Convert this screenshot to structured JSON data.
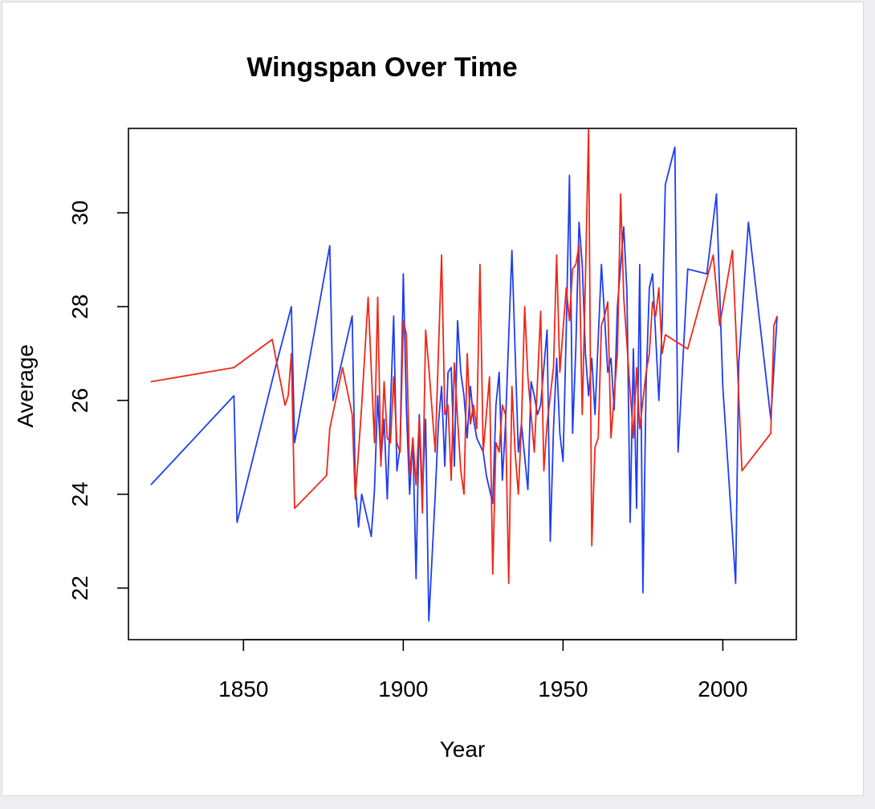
{
  "chart_data": {
    "type": "line",
    "title": "Wingspan Over Time",
    "xlabel": "Year",
    "ylabel": "Average",
    "xlim": [
      1814,
      2023
    ],
    "ylim": [
      20.9,
      31.8
    ],
    "xticks": [
      1850,
      1900,
      1950,
      2000
    ],
    "yticks": [
      22,
      24,
      26,
      28,
      30
    ],
    "grid": false,
    "series": [
      {
        "color": "#1f3df2",
        "points": [
          [
            1821,
            24.2
          ],
          [
            1847,
            26.1
          ],
          [
            1848,
            23.4
          ],
          [
            1860,
            26.7
          ],
          [
            1865,
            28.0
          ],
          [
            1866,
            25.1
          ],
          [
            1877,
            29.3
          ],
          [
            1878,
            26.0
          ],
          [
            1884,
            27.8
          ],
          [
            1885,
            24.2
          ],
          [
            1886,
            23.3
          ],
          [
            1887,
            24.0
          ],
          [
            1890,
            23.1
          ],
          [
            1891,
            24.1
          ],
          [
            1892,
            26.1
          ],
          [
            1893,
            24.7
          ],
          [
            1894,
            25.6
          ],
          [
            1895,
            23.9
          ],
          [
            1897,
            27.8
          ],
          [
            1898,
            24.5
          ],
          [
            1899,
            25.0
          ],
          [
            1900,
            28.7
          ],
          [
            1901,
            25.8
          ],
          [
            1902,
            24.0
          ],
          [
            1903,
            25.2
          ],
          [
            1904,
            22.2
          ],
          [
            1905,
            25.7
          ],
          [
            1906,
            24.0
          ],
          [
            1907,
            25.6
          ],
          [
            1908,
            21.3
          ],
          [
            1910,
            24.0
          ],
          [
            1911,
            25.5
          ],
          [
            1912,
            26.3
          ],
          [
            1913,
            24.6
          ],
          [
            1914,
            26.6
          ],
          [
            1915,
            26.7
          ],
          [
            1916,
            24.6
          ],
          [
            1917,
            27.7
          ],
          [
            1918,
            26.6
          ],
          [
            1919,
            26.1
          ],
          [
            1920,
            25.2
          ],
          [
            1921,
            26.3
          ],
          [
            1922,
            25.6
          ],
          [
            1923,
            25.2
          ],
          [
            1925,
            24.9
          ],
          [
            1926,
            24.4
          ],
          [
            1928,
            23.8
          ],
          [
            1929,
            25.9
          ],
          [
            1930,
            26.6
          ],
          [
            1931,
            24.3
          ],
          [
            1932,
            25.5
          ],
          [
            1934,
            29.2
          ],
          [
            1936,
            24.9
          ],
          [
            1937,
            25.5
          ],
          [
            1939,
            24.1
          ],
          [
            1940,
            26.4
          ],
          [
            1941,
            26.1
          ],
          [
            1942,
            25.7
          ],
          [
            1943,
            25.9
          ],
          [
            1945,
            27.5
          ],
          [
            1946,
            23.0
          ],
          [
            1947,
            25.4
          ],
          [
            1948,
            26.9
          ],
          [
            1949,
            25.3
          ],
          [
            1950,
            24.7
          ],
          [
            1951,
            27.5
          ],
          [
            1952,
            30.8
          ],
          [
            1953,
            25.3
          ],
          [
            1954,
            27.1
          ],
          [
            1955,
            29.8
          ],
          [
            1956,
            28.9
          ],
          [
            1957,
            27.0
          ],
          [
            1958,
            26.1
          ],
          [
            1959,
            26.9
          ],
          [
            1960,
            25.7
          ],
          [
            1962,
            28.9
          ],
          [
            1963,
            27.8
          ],
          [
            1964,
            26.6
          ],
          [
            1965,
            26.9
          ],
          [
            1966,
            25.8
          ],
          [
            1967,
            28.0
          ],
          [
            1969,
            29.7
          ],
          [
            1970,
            28.3
          ],
          [
            1971,
            23.4
          ],
          [
            1972,
            27.1
          ],
          [
            1973,
            23.7
          ],
          [
            1974,
            28.9
          ],
          [
            1975,
            21.9
          ],
          [
            1976,
            26.4
          ],
          [
            1977,
            28.4
          ],
          [
            1978,
            28.7
          ],
          [
            1980,
            26.0
          ],
          [
            1981,
            27.6
          ],
          [
            1982,
            30.6
          ],
          [
            1985,
            31.4
          ],
          [
            1986,
            24.9
          ],
          [
            1989,
            28.8
          ],
          [
            1995,
            28.7
          ],
          [
            1998,
            30.4
          ],
          [
            2000,
            26.3
          ],
          [
            2004,
            22.1
          ],
          [
            2005,
            26.8
          ],
          [
            2008,
            29.8
          ],
          [
            2015,
            25.6
          ],
          [
            2017,
            27.8
          ]
        ]
      },
      {
        "color": "#f02716",
        "points": [
          [
            1821,
            26.4
          ],
          [
            1847,
            26.7
          ],
          [
            1859,
            27.3
          ],
          [
            1863,
            25.9
          ],
          [
            1864,
            26.1
          ],
          [
            1865,
            27.0
          ],
          [
            1866,
            23.7
          ],
          [
            1876,
            24.4
          ],
          [
            1877,
            25.4
          ],
          [
            1881,
            26.7
          ],
          [
            1884,
            25.7
          ],
          [
            1885,
            23.9
          ],
          [
            1887,
            25.9
          ],
          [
            1889,
            28.2
          ],
          [
            1891,
            25.1
          ],
          [
            1892,
            28.2
          ],
          [
            1893,
            24.6
          ],
          [
            1894,
            26.4
          ],
          [
            1895,
            25.2
          ],
          [
            1896,
            25.1
          ],
          [
            1897,
            26.5
          ],
          [
            1898,
            25.1
          ],
          [
            1899,
            24.9
          ],
          [
            1900,
            27.7
          ],
          [
            1901,
            27.4
          ],
          [
            1902,
            24.4
          ],
          [
            1903,
            25.2
          ],
          [
            1904,
            24.2
          ],
          [
            1905,
            25.6
          ],
          [
            1906,
            23.6
          ],
          [
            1907,
            27.5
          ],
          [
            1908,
            26.7
          ],
          [
            1910,
            24.9
          ],
          [
            1911,
            27.0
          ],
          [
            1912,
            29.1
          ],
          [
            1913,
            25.7
          ],
          [
            1914,
            25.9
          ],
          [
            1915,
            24.3
          ],
          [
            1916,
            26.8
          ],
          [
            1917,
            25.6
          ],
          [
            1918,
            24.5
          ],
          [
            1919,
            24.0
          ],
          [
            1920,
            27.0
          ],
          [
            1921,
            25.5
          ],
          [
            1922,
            25.9
          ],
          [
            1923,
            25.4
          ],
          [
            1924,
            28.9
          ],
          [
            1925,
            24.9
          ],
          [
            1927,
            26.5
          ],
          [
            1928,
            22.3
          ],
          [
            1929,
            25.1
          ],
          [
            1930,
            24.9
          ],
          [
            1931,
            25.9
          ],
          [
            1932,
            25.7
          ],
          [
            1933,
            22.1
          ],
          [
            1934,
            26.3
          ],
          [
            1935,
            24.9
          ],
          [
            1936,
            24.0
          ],
          [
            1937,
            25.5
          ],
          [
            1938,
            28.0
          ],
          [
            1939,
            26.5
          ],
          [
            1940,
            25.7
          ],
          [
            1941,
            24.9
          ],
          [
            1943,
            27.9
          ],
          [
            1944,
            24.5
          ],
          [
            1945,
            25.5
          ],
          [
            1947,
            26.7
          ],
          [
            1948,
            29.1
          ],
          [
            1949,
            26.6
          ],
          [
            1951,
            28.4
          ],
          [
            1952,
            27.7
          ],
          [
            1953,
            28.8
          ],
          [
            1954,
            28.9
          ],
          [
            1955,
            29.3
          ],
          [
            1956,
            25.7
          ],
          [
            1957,
            28.6
          ],
          [
            1958,
            31.8
          ],
          [
            1959,
            22.9
          ],
          [
            1960,
            25.0
          ],
          [
            1961,
            25.2
          ],
          [
            1962,
            27.6
          ],
          [
            1963,
            27.8
          ],
          [
            1964,
            28.1
          ],
          [
            1965,
            25.2
          ],
          [
            1967,
            27.0
          ],
          [
            1968,
            30.4
          ],
          [
            1969,
            28.2
          ],
          [
            1972,
            25.2
          ],
          [
            1973,
            26.7
          ],
          [
            1974,
            25.4
          ],
          [
            1976,
            26.6
          ],
          [
            1977,
            27.0
          ],
          [
            1978,
            28.1
          ],
          [
            1979,
            27.8
          ],
          [
            1980,
            28.4
          ],
          [
            1981,
            27.0
          ],
          [
            1982,
            27.4
          ],
          [
            1989,
            27.1
          ],
          [
            1997,
            29.1
          ],
          [
            1999,
            27.6
          ],
          [
            2003,
            29.2
          ],
          [
            2006,
            24.5
          ],
          [
            2015,
            25.3
          ],
          [
            2016,
            27.6
          ],
          [
            2017,
            27.8
          ]
        ]
      }
    ]
  }
}
